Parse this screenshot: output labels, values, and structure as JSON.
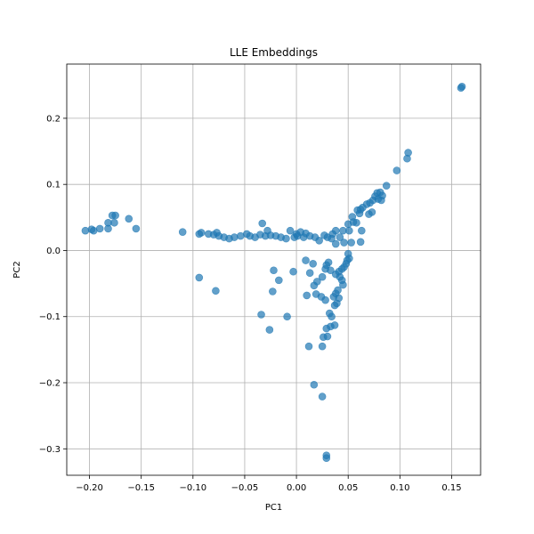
{
  "chart_data": {
    "type": "scatter",
    "title": "LLE Embeddings",
    "xlabel": "PC1",
    "ylabel": "PC2",
    "xlim": [
      -0.222,
      0.178
    ],
    "ylim": [
      -0.34,
      0.282
    ],
    "xticks": [
      -0.2,
      -0.15,
      -0.1,
      -0.05,
      0.0,
      0.05,
      0.1,
      0.15
    ],
    "xtick_labels": [
      "−0.20",
      "−0.15",
      "−0.10",
      "−0.05",
      "0.00",
      "0.05",
      "0.10",
      "0.15"
    ],
    "yticks": [
      -0.3,
      -0.2,
      -0.1,
      0.0,
      0.1,
      0.2
    ],
    "ytick_labels": [
      "−0.3",
      "−0.2",
      "−0.1",
      "0.0",
      "0.1",
      "0.2"
    ],
    "grid": true,
    "marker_color": "#1f77b4",
    "marker_alpha": 0.7,
    "points": [
      [
        0.16,
        0.248
      ],
      [
        0.159,
        0.246
      ],
      [
        0.108,
        0.148
      ],
      [
        0.107,
        0.139
      ],
      [
        0.097,
        0.121
      ],
      [
        0.087,
        0.098
      ],
      [
        0.081,
        0.088
      ],
      [
        0.078,
        0.087
      ],
      [
        0.083,
        0.083
      ],
      [
        0.076,
        0.082
      ],
      [
        0.079,
        0.078
      ],
      [
        0.074,
        0.076
      ],
      [
        0.082,
        0.076
      ],
      [
        0.071,
        0.072
      ],
      [
        0.068,
        0.07
      ],
      [
        0.064,
        0.065
      ],
      [
        0.062,
        0.062
      ],
      [
        0.059,
        0.061
      ],
      [
        0.073,
        0.058
      ],
      [
        0.07,
        0.055
      ],
      [
        0.061,
        0.056
      ],
      [
        0.054,
        0.051
      ],
      [
        0.055,
        0.043
      ],
      [
        0.05,
        0.04
      ],
      [
        0.045,
        0.03
      ],
      [
        0.058,
        0.042
      ],
      [
        0.063,
        0.03
      ],
      [
        0.051,
        0.03
      ],
      [
        0.038,
        0.03
      ],
      [
        0.035,
        0.025
      ],
      [
        0.042,
        0.02
      ],
      [
        0.053,
        0.012
      ],
      [
        0.062,
        0.013
      ],
      [
        0.03,
        0.02
      ],
      [
        0.027,
        0.023
      ],
      [
        0.034,
        0.018
      ],
      [
        0.046,
        0.012
      ],
      [
        0.038,
        0.01
      ],
      [
        0.022,
        0.015
      ],
      [
        0.018,
        0.02
      ],
      [
        0.013,
        0.022
      ],
      [
        0.009,
        0.026
      ],
      [
        0.004,
        0.028
      ],
      [
        0.0,
        0.025
      ],
      [
        -0.002,
        0.02
      ],
      [
        -0.01,
        0.018
      ],
      [
        -0.015,
        0.02
      ],
      [
        -0.02,
        0.022
      ],
      [
        -0.025,
        0.023
      ],
      [
        -0.03,
        0.022
      ],
      [
        -0.035,
        0.024
      ],
      [
        -0.04,
        0.02
      ],
      [
        -0.045,
        0.022
      ],
      [
        -0.048,
        0.025
      ],
      [
        -0.054,
        0.022
      ],
      [
        -0.06,
        0.02
      ],
      [
        -0.065,
        0.018
      ],
      [
        -0.07,
        0.02
      ],
      [
        -0.075,
        0.022
      ],
      [
        -0.08,
        0.024
      ],
      [
        -0.085,
        0.025
      ],
      [
        -0.092,
        0.027
      ],
      [
        -0.094,
        0.025
      ],
      [
        -0.11,
        0.028
      ],
      [
        -0.077,
        0.027
      ],
      [
        -0.033,
        0.041
      ],
      [
        -0.028,
        0.03
      ],
      [
        -0.006,
        0.03
      ],
      [
        0.001,
        0.022
      ],
      [
        0.007,
        0.02
      ],
      [
        -0.155,
        0.033
      ],
      [
        -0.162,
        0.048
      ],
      [
        -0.175,
        0.053
      ],
      [
        -0.178,
        0.053
      ],
      [
        -0.176,
        0.042
      ],
      [
        -0.182,
        0.042
      ],
      [
        -0.182,
        0.033
      ],
      [
        -0.19,
        0.033
      ],
      [
        -0.196,
        0.03
      ],
      [
        -0.198,
        0.032
      ],
      [
        -0.204,
        0.03
      ],
      [
        0.05,
        -0.005
      ],
      [
        0.051,
        -0.012
      ],
      [
        0.049,
        -0.015
      ],
      [
        0.048,
        -0.02
      ],
      [
        0.046,
        -0.025
      ],
      [
        0.044,
        -0.028
      ],
      [
        0.041,
        -0.032
      ],
      [
        0.038,
        -0.036
      ],
      [
        0.042,
        -0.04
      ],
      [
        0.044,
        -0.045
      ],
      [
        0.045,
        -0.052
      ],
      [
        0.04,
        -0.06
      ],
      [
        0.038,
        -0.065
      ],
      [
        0.036,
        -0.07
      ],
      [
        0.041,
        -0.072
      ],
      [
        0.039,
        -0.08
      ],
      [
        0.037,
        -0.083
      ],
      [
        0.032,
        -0.095
      ],
      [
        0.034,
        -0.1
      ],
      [
        0.037,
        -0.113
      ],
      [
        0.033,
        -0.115
      ],
      [
        0.03,
        -0.13
      ],
      [
        0.029,
        -0.118
      ],
      [
        0.026,
        -0.131
      ],
      [
        0.025,
        -0.145
      ],
      [
        0.029,
        -0.022
      ],
      [
        0.028,
        -0.028
      ],
      [
        0.031,
        -0.018
      ],
      [
        0.033,
        -0.03
      ],
      [
        0.025,
        -0.04
      ],
      [
        0.02,
        -0.047
      ],
      [
        0.017,
        -0.053
      ],
      [
        0.013,
        -0.034
      ],
      [
        0.016,
        -0.02
      ],
      [
        0.009,
        -0.015
      ],
      [
        0.01,
        -0.068
      ],
      [
        0.019,
        -0.066
      ],
      [
        0.024,
        -0.07
      ],
      [
        0.028,
        -0.075
      ],
      [
        0.012,
        -0.145
      ],
      [
        0.017,
        -0.203
      ],
      [
        0.025,
        -0.221
      ],
      [
        0.029,
        -0.31
      ],
      [
        0.029,
        -0.314
      ],
      [
        -0.034,
        -0.097
      ],
      [
        -0.026,
        -0.12
      ],
      [
        -0.022,
        -0.03
      ],
      [
        -0.017,
        -0.045
      ],
      [
        -0.023,
        -0.062
      ],
      [
        -0.009,
        -0.1
      ],
      [
        -0.003,
        -0.032
      ],
      [
        -0.094,
        -0.041
      ],
      [
        -0.078,
        -0.061
      ]
    ]
  }
}
